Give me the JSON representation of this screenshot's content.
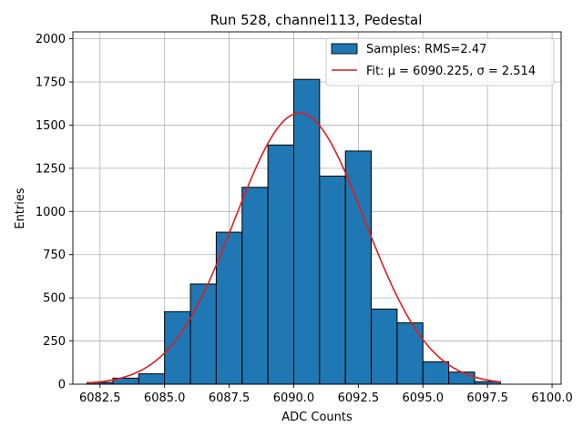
{
  "chart_data": {
    "type": "bar",
    "title": "Run 528, channel113, Pedestal",
    "xlabel": "ADC Counts",
    "ylabel": "Entries",
    "xlim": [
      6081.45,
      6100.35
    ],
    "ylim": [
      0,
      2040
    ],
    "xticks": [
      6082.5,
      6085.0,
      6087.5,
      6090.0,
      6092.5,
      6095.0,
      6097.5,
      6100.0
    ],
    "xtick_labels": [
      "6082.5",
      "6085.0",
      "6087.5",
      "6090.0",
      "6092.5",
      "6095.0",
      "6097.5",
      "6100.0"
    ],
    "yticks": [
      0,
      250,
      500,
      750,
      1000,
      1250,
      1500,
      1750,
      2000
    ],
    "ytick_labels": [
      "0",
      "250",
      "500",
      "750",
      "1000",
      "1250",
      "1500",
      "1750",
      "2000"
    ],
    "grid": true,
    "legend_position": "top-right",
    "histogram": {
      "name": "Samples: RMS=2.47",
      "color": "#1f77b4",
      "edgecolor": "#000000",
      "bin_edges": [
        6082,
        6083,
        6084,
        6085,
        6086,
        6087,
        6088,
        6089,
        6090,
        6091,
        6092,
        6093,
        6094,
        6095,
        6096,
        6097,
        6098
      ],
      "values": [
        10,
        35,
        60,
        420,
        580,
        880,
        1140,
        1385,
        1765,
        1205,
        1350,
        435,
        355,
        130,
        70,
        15
      ]
    },
    "fit": {
      "name": "Fit: μ = 6090.225, σ = 2.514",
      "color": "#e41a1c",
      "mu": 6090.225,
      "sigma": 2.514,
      "amplitude": 1570,
      "x_range": [
        6082,
        6098
      ]
    }
  }
}
